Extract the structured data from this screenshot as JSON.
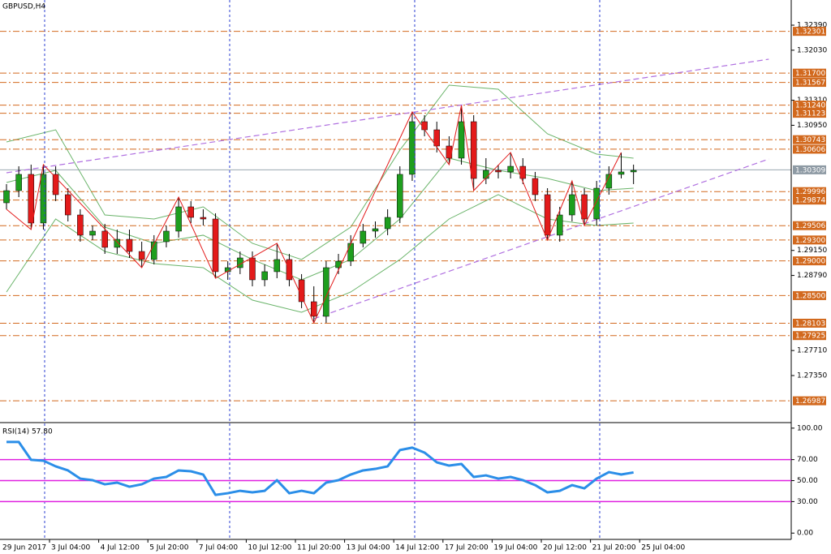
{
  "chart_data": [
    {
      "type": "candlestick",
      "title": "GBPUSD,H4",
      "open": [
        1.29835,
        1.3001,
        1.30244,
        1.29544,
        1.30244,
        1.29952,
        1.2966,
        1.29369,
        1.29427,
        1.29194,
        1.2931,
        1.29135,
        1.29019,
        1.29275,
        1.29427,
        1.29777,
        1.29625,
        1.29602,
        1.28844,
        1.28902,
        1.29042,
        1.28727,
        1.28844,
        1.29019,
        1.28727,
        1.28412,
        1.28202,
        1.28902,
        1.28995,
        1.29252,
        1.29427,
        1.29462,
        1.29625,
        1.30244,
        1.31002,
        1.30885,
        1.30652,
        1.30477,
        1.31002,
        1.30185,
        1.30302,
        1.30279,
        1.3036,
        1.30185,
        1.29952,
        1.29369,
        1.2966,
        1.29952,
        1.29602,
        1.30045,
        1.30244,
        1.30279
      ],
      "high": [
        1.30104,
        1.3036,
        1.30384,
        1.30384,
        1.3036,
        1.30045,
        1.29742,
        1.29509,
        1.29532,
        1.2945,
        1.2945,
        1.29275,
        1.29369,
        1.29509,
        1.29917,
        1.29859,
        1.29742,
        1.29684,
        1.28995,
        1.29135,
        1.29135,
        1.28949,
        1.29252,
        1.291,
        1.28809,
        1.28634,
        1.28995,
        1.291,
        1.29369,
        1.29532,
        1.29567,
        1.29742,
        1.3036,
        1.31142,
        1.31095,
        1.31002,
        1.30792,
        1.31235,
        1.31095,
        1.30477,
        1.30384,
        1.30559,
        1.30477,
        1.30279,
        1.30045,
        1.29777,
        1.3015,
        1.30045,
        1.3015,
        1.3036,
        1.30559,
        1.30384
      ],
      "low": [
        1.29742,
        1.29917,
        1.2945,
        1.2945,
        1.29859,
        1.29567,
        1.29275,
        1.29299,
        1.291,
        1.291,
        1.29042,
        1.28902,
        1.28949,
        1.29194,
        1.29334,
        1.29544,
        1.29509,
        1.2875,
        1.28727,
        1.28809,
        1.28634,
        1.28634,
        1.2875,
        1.28634,
        1.28319,
        1.28109,
        1.28109,
        1.28809,
        1.28925,
        1.29194,
        1.29334,
        1.29369,
        1.29544,
        1.3015,
        1.30792,
        1.30559,
        1.30384,
        1.30384,
        1.3001,
        1.30104,
        1.30185,
        1.30185,
        1.30104,
        1.29859,
        1.29299,
        1.29275,
        1.29567,
        1.29509,
        1.29509,
        1.29952,
        1.30185,
        1.30104
      ],
      "close": [
        1.3001,
        1.30244,
        1.29544,
        1.30244,
        1.29952,
        1.2966,
        1.29369,
        1.29427,
        1.29194,
        1.2931,
        1.29135,
        1.29019,
        1.29275,
        1.29427,
        1.29777,
        1.29625,
        1.29602,
        1.28844,
        1.28902,
        1.29042,
        1.28727,
        1.28844,
        1.29019,
        1.28727,
        1.28412,
        1.28202,
        1.28902,
        1.28995,
        1.29252,
        1.29427,
        1.29462,
        1.29625,
        1.30244,
        1.31002,
        1.30885,
        1.30652,
        1.30477,
        1.31002,
        1.30185,
        1.30302,
        1.30279,
        1.3036,
        1.30185,
        1.29952,
        1.29369,
        1.2966,
        1.29952,
        1.29602,
        1.30045,
        1.30244,
        1.30279,
        1.30302
      ],
      "up_color": "#1e9e1e",
      "down_color": "#e31a1a",
      "ylim": [
        1.26685,
        1.32752
      ],
      "yticks": [
        {
          "value": 1.3239,
          "label": "1.32390"
        },
        {
          "value": 1.3203,
          "label": "1.32030"
        },
        {
          "value": 1.3131,
          "label": "1.31310"
        },
        {
          "value": 1.3095,
          "label": "1.30950"
        },
        {
          "value": 1.2915,
          "label": "1.29150"
        },
        {
          "value": 1.2879,
          "label": "1.28790"
        },
        {
          "value": 1.2771,
          "label": "1.27710"
        },
        {
          "value": 1.2735,
          "label": "1.27350"
        }
      ],
      "levels": [
        1.32301,
        {
          "value": 1.317,
          "label": "1.31700"
        },
        1.31567,
        {
          "value": 1.3124,
          "label": "1.31240"
        },
        1.31123,
        1.30743,
        1.30606,
        1.29996,
        1.29874,
        1.29506,
        {
          "value": 1.293,
          "label": "1.29300"
        },
        {
          "value": 1.29,
          "label": "1.29000"
        },
        {
          "value": 1.285,
          "label": "1.28500"
        },
        1.28103,
        1.27925,
        1.26987
      ],
      "level_color": "#d2691e",
      "current_price": 1.30309,
      "bollinger": {
        "color": "#6ab46a",
        "x": [
          0,
          4,
          8,
          12,
          16,
          20,
          24,
          28,
          32,
          36,
          40,
          44,
          48,
          51
        ],
        "upper": [
          1.3071,
          1.30885,
          1.2966,
          1.29602,
          1.29777,
          1.29252,
          1.29019,
          1.29485,
          1.30594,
          1.31527,
          1.31469,
          1.30827,
          1.30535,
          1.30477
        ],
        "middle": [
          1.30127,
          1.30302,
          1.29485,
          1.29252,
          1.29369,
          1.29019,
          1.28727,
          1.29019,
          1.29602,
          1.30477,
          1.30302,
          1.30185,
          1.3001,
          1.30045
        ],
        "lower": [
          1.28552,
          1.29602,
          1.29135,
          1.2896,
          1.28902,
          1.28435,
          1.2826,
          1.28552,
          1.29019,
          1.29602,
          1.29952,
          1.29602,
          1.29509,
          1.29544
        ]
      },
      "zigzag": {
        "color": "#e31a1a",
        "x": [
          0,
          2,
          3,
          11,
          14,
          17,
          22,
          25,
          33,
          36,
          37,
          38,
          41,
          44,
          46,
          47,
          50
        ],
        "values": [
          1.29742,
          1.2945,
          1.30384,
          1.28902,
          1.29917,
          1.2875,
          1.29252,
          1.28109,
          1.31142,
          1.30384,
          1.31235,
          1.3001,
          1.30559,
          1.29299,
          1.3015,
          1.29509,
          1.30559
        ]
      },
      "trendline_color": "#b070e0",
      "trendlines": [
        {
          "x": [
            0,
            62
          ],
          "values": [
            1.30267,
            1.319
          ]
        },
        {
          "x": [
            25,
            62
          ],
          "values": [
            1.28167,
            1.30465
          ]
        }
      ],
      "xticks": [
        "29 Jun 2017",
        "3 Jul 04:00",
        "4 Jul 12:00",
        "5 Jul 20:00",
        "7 Jul 04:00",
        "10 Jul 12:00",
        "11 Jul 20:00",
        "13 Jul 04:00",
        "14 Jul 12:00",
        "17 Jul 20:00",
        "19 Jul 04:00",
        "20 Jul 12:00",
        "21 Jul 20:00",
        "25 Jul 04:00"
      ]
    },
    {
      "type": "line",
      "title": "RSI(14) 57.80",
      "color": "#2b8ee8",
      "values": [
        86.8,
        86.8,
        69.8,
        69.0,
        63.6,
        59.7,
        51.9,
        50.4,
        46.5,
        48.1,
        44.2,
        46.5,
        51.9,
        53.5,
        59.7,
        58.9,
        55.8,
        36.4,
        38.0,
        40.3,
        38.8,
        40.3,
        50.4,
        38.0,
        40.3,
        38.0,
        48.1,
        50.4,
        55.8,
        59.7,
        61.2,
        63.6,
        79.1,
        81.4,
        76.7,
        67.4,
        64.3,
        65.9,
        53.5,
        55.0,
        51.9,
        53.5,
        50.4,
        45.7,
        38.8,
        40.3,
        45.7,
        42.6,
        51.9,
        58.1,
        55.8,
        57.8
      ],
      "ylim": [
        -6,
        104.5
      ],
      "yticks": [
        {
          "value": 100,
          "label": "100.00"
        },
        {
          "value": 70,
          "label": "70.00"
        },
        {
          "value": 50,
          "label": "50.00"
        },
        {
          "value": 30,
          "label": "30.00"
        },
        {
          "value": 0,
          "label": "0.00"
        }
      ],
      "levels": [
        70,
        50,
        30
      ],
      "level_color": "#e020e0"
    }
  ]
}
